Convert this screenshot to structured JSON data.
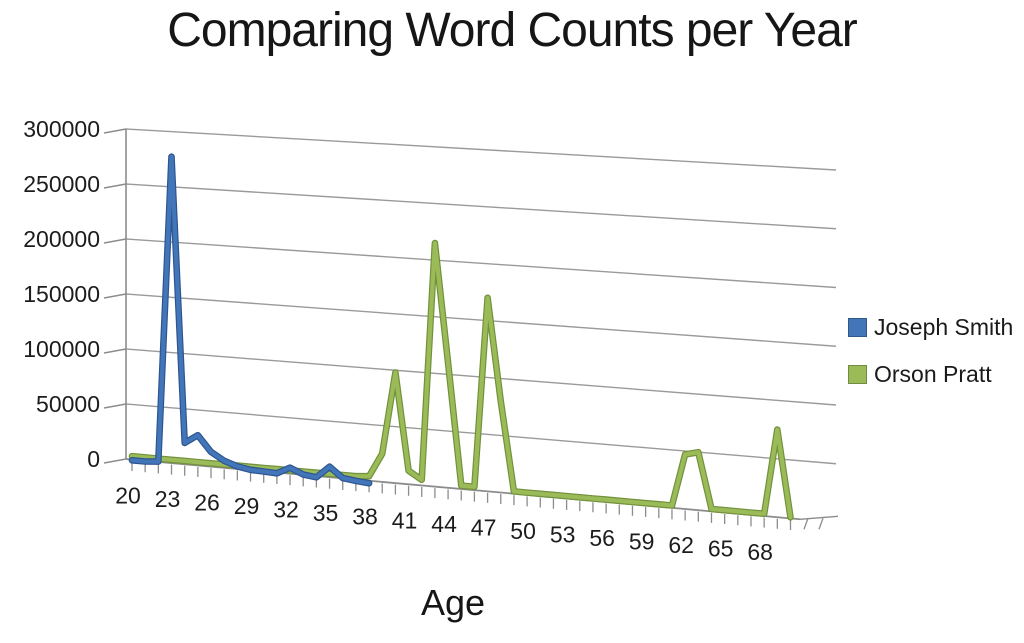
{
  "title": "Comparing Word Counts per Year",
  "chart_data": {
    "type": "line",
    "style": "3d-perspective",
    "title": "Comparing Word Counts per Year",
    "xlabel": "Age",
    "ylabel": "",
    "ylim": [
      0,
      300000
    ],
    "y_tick_step": 50000,
    "y_tick_labels": [
      "300000",
      "250000",
      "200000",
      "150000",
      "100000",
      "50000",
      "0"
    ],
    "x_range": [
      20,
      70
    ],
    "x_tick_interval": 1,
    "x_tick_labels": [
      20,
      23,
      26,
      29,
      32,
      35,
      38,
      41,
      44,
      47,
      50,
      53,
      56,
      59,
      62,
      65,
      68
    ],
    "grid": true,
    "legend_position": "right",
    "background_color": "#ffffff",
    "gridline_color": "#9a9a9a",
    "axis_color": "#8c8c8c",
    "text_color": "#1c1c1c",
    "series": [
      {
        "name": "Joseph Smith",
        "color": "#4376B8",
        "edge_color": "#2D5590",
        "x_start": 20,
        "values": [
          2000,
          2000,
          3000,
          280000,
          22000,
          30000,
          16000,
          9000,
          5000,
          3000,
          2500,
          2000,
          8000,
          3000,
          1500,
          12000,
          3000,
          1500,
          500
        ]
      },
      {
        "name": "Orson Pratt",
        "color": "#9BBB59",
        "edge_color": "#71913B",
        "x_start": 20,
        "values": [
          3000,
          3000,
          3000,
          3000,
          3000,
          3000,
          3000,
          3000,
          3000,
          3000,
          3000,
          3000,
          3000,
          3000,
          3000,
          3000,
          3000,
          3000,
          4000,
          25000,
          98000,
          12000,
          5000,
          215000,
          110000,
          3000,
          3000,
          170000,
          80000,
          2000,
          2000,
          2000,
          2000,
          2000,
          2000,
          2000,
          2000,
          2000,
          2000,
          2000,
          2000,
          2000,
          47000,
          50000,
          2000,
          2000,
          2000,
          2000,
          2000,
          75000,
          1000
        ]
      }
    ]
  }
}
